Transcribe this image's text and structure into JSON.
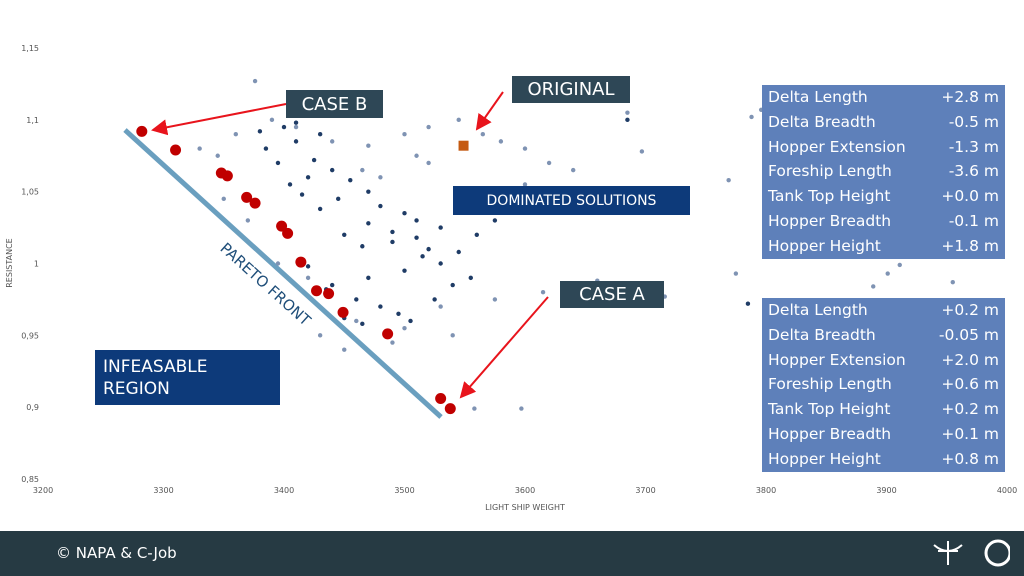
{
  "chart_data": {
    "type": "scatter",
    "xlabel": "LIGHT SHIP WEIGHT",
    "ylabel": "RESISTANCE",
    "xlim": [
      3200,
      4000
    ],
    "ylim": [
      0.85,
      1.15
    ],
    "xticks": [
      3200,
      3300,
      3400,
      3500,
      3600,
      3700,
      3800,
      3900,
      4000
    ],
    "yticks": [
      {
        "value": 0.85,
        "label": "0,85"
      },
      {
        "value": 0.9,
        "label": "0,9"
      },
      {
        "value": 0.95,
        "label": "0,95"
      },
      1,
      {
        "value": 1.05,
        "label": "1,05"
      },
      {
        "value": 1.1,
        "label": "1,1"
      },
      {
        "value": 1.15,
        "label": "1,15"
      }
    ],
    "grid": false,
    "series": [
      {
        "color": "#1f3c66",
        "marker": "circle",
        "x": [
          3410,
          3425,
          3440,
          3455,
          3470,
          3385,
          3395,
          3420,
          3445,
          3480,
          3500,
          3510,
          3530,
          3450,
          3465,
          3430,
          3415,
          3405,
          3490,
          3520,
          3545,
          3560,
          3575,
          3590,
          3610,
          3470,
          3440,
          3460,
          3480,
          3495,
          3505,
          3525,
          3540,
          3555,
          3420,
          3435,
          3450,
          3465,
          3500,
          3515,
          3380,
          3400,
          3470,
          3490,
          3510,
          3530,
          3685,
          3785,
          3410,
          3430
        ],
        "values": [
          1.085,
          1.072,
          1.065,
          1.058,
          1.05,
          1.08,
          1.07,
          1.06,
          1.045,
          1.04,
          1.035,
          1.03,
          1.025,
          1.02,
          1.012,
          1.038,
          1.048,
          1.055,
          1.015,
          1.01,
          1.008,
          1.02,
          1.03,
          1.04,
          1.045,
          0.99,
          0.985,
          0.975,
          0.97,
          0.965,
          0.96,
          0.975,
          0.985,
          0.99,
          0.998,
          0.982,
          0.962,
          0.958,
          0.995,
          1.005,
          1.092,
          1.095,
          1.028,
          1.022,
          1.018,
          1.0,
          1.1,
          0.972,
          1.098,
          1.09
        ]
      },
      {
        "color": "#7f93b3",
        "marker": "circle",
        "x": [
          3376,
          3330,
          3345,
          3360,
          3390,
          3410,
          3440,
          3470,
          3500,
          3520,
          3545,
          3565,
          3580,
          3600,
          3620,
          3640,
          3685,
          3697,
          3769,
          3775,
          3788,
          3796,
          3889,
          3901,
          3911,
          3955,
          3597,
          3558,
          3716,
          3678,
          3660,
          3540,
          3500,
          3460,
          3430,
          3395,
          3370,
          3350,
          3480,
          3520,
          3560,
          3600,
          3615,
          3450,
          3420,
          3490,
          3530,
          3575,
          3510,
          3465
        ],
        "values": [
          1.127,
          1.08,
          1.075,
          1.09,
          1.1,
          1.095,
          1.085,
          1.082,
          1.09,
          1.095,
          1.1,
          1.09,
          1.085,
          1.08,
          1.07,
          1.065,
          1.105,
          1.078,
          1.058,
          0.993,
          1.102,
          1.107,
          0.984,
          0.993,
          0.999,
          0.987,
          0.899,
          0.899,
          0.977,
          0.971,
          0.988,
          0.95,
          0.955,
          0.96,
          0.95,
          1.0,
          1.03,
          1.045,
          1.06,
          1.07,
          1.05,
          1.055,
          0.98,
          0.94,
          0.99,
          0.945,
          0.97,
          0.975,
          1.075,
          1.065
        ]
      },
      {
        "color": "#c00000",
        "marker": "big-circle",
        "x": [
          3282,
          3310,
          3348,
          3353,
          3369,
          3376,
          3398,
          3403,
          3414,
          3427,
          3437,
          3449,
          3486,
          3530,
          3538
        ],
        "values": [
          1.092,
          1.079,
          1.063,
          1.061,
          1.046,
          1.042,
          1.026,
          1.021,
          1.001,
          0.981,
          0.979,
          0.966,
          0.951,
          0.906,
          0.899
        ]
      },
      {
        "color": "#c55a11",
        "marker": "square",
        "x": [
          3549
        ],
        "values": [
          1.082
        ]
      }
    ],
    "annotations": {
      "case_b": "CASE B",
      "original": "ORIGINAL",
      "dominated": "DOMINATED SOLUTIONS",
      "case_a": "CASE A",
      "infeasible": "INFEASABLE REGION",
      "pareto": "PARETO FRONT"
    }
  },
  "panels": [
    {
      "rows": [
        [
          "Delta Length",
          "+2.8 m"
        ],
        [
          "Delta Breadth",
          "-0.5 m"
        ],
        [
          "Hopper Extension",
          "-1.3 m"
        ],
        [
          "Foreship Length",
          "-3.6 m"
        ],
        [
          "Tank Top Height",
          "+0.0 m"
        ],
        [
          "Hopper Breadth",
          "-0.1 m"
        ],
        [
          "Hopper Height",
          "+1.8 m"
        ]
      ]
    },
    {
      "rows": [
        [
          "Delta Length",
          "+0.2 m"
        ],
        [
          "Delta Breadth",
          "-0.05 m"
        ],
        [
          "Hopper Extension",
          "+2.0 m"
        ],
        [
          "Foreship Length",
          "+0.6 m"
        ],
        [
          "Tank Top Height",
          "+0.2 m"
        ],
        [
          "Hopper Breadth",
          "+0.1 m"
        ],
        [
          "Hopper Height",
          "+0.8 m"
        ]
      ]
    }
  ],
  "footer": "© NAPA & C-Job"
}
